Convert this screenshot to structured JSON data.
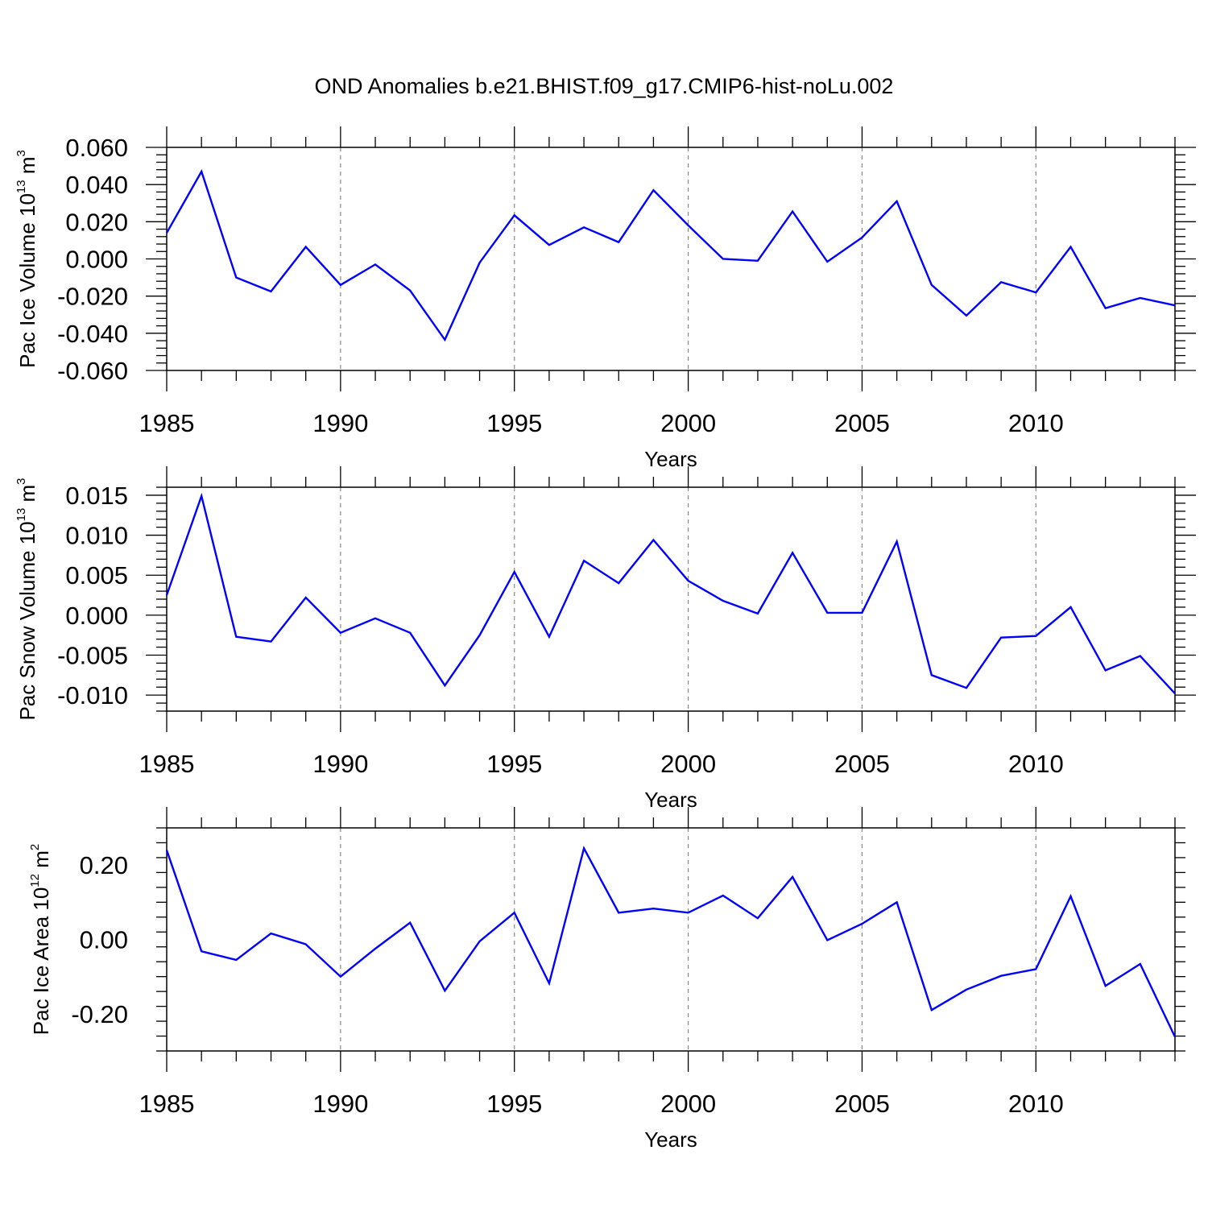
{
  "title": "OND Anomalies b.e21.BHIST.f09_g17.CMIP6-hist-noLu.002",
  "colors": {
    "line": "#0000ff",
    "axis": "#000000",
    "grid": "#888888"
  },
  "chart_data": [
    {
      "type": "line",
      "xlabel": "Years",
      "ylabel_text": "Pac Ice Volume 10",
      "ylabel_exp": "13",
      "ylabel_unit": " m",
      "ylabel_unit_exp": "3",
      "xlim": [
        1985,
        2014
      ],
      "ylim": [
        -0.06,
        0.06
      ],
      "yticks": [
        -0.06,
        -0.04,
        -0.02,
        0.0,
        0.02,
        0.04,
        0.06
      ],
      "ytick_labels": [
        "-0.060",
        "-0.040",
        "-0.020",
        "0.000",
        "0.020",
        "0.040",
        "0.060"
      ],
      "xticks": [
        1985,
        1990,
        1995,
        2000,
        2005,
        2010
      ],
      "xtick_labels": [
        "1985",
        "1990",
        "1995",
        "2000",
        "2005",
        "2010"
      ],
      "grid_x": [
        1990,
        1995,
        2000,
        2005,
        2010
      ],
      "x": [
        1985,
        1986,
        1987,
        1988,
        1989,
        1990,
        1991,
        1992,
        1993,
        1994,
        1995,
        1996,
        1997,
        1998,
        1999,
        2000,
        2001,
        2002,
        2003,
        2004,
        2005,
        2006,
        2007,
        2008,
        2009,
        2010,
        2011,
        2012,
        2013,
        2014
      ],
      "series": [
        {
          "values": [
            0.014,
            0.047,
            -0.01,
            -0.0175,
            0.0065,
            -0.014,
            -0.003,
            -0.017,
            -0.0435,
            -0.002,
            0.0235,
            0.0075,
            0.017,
            0.009,
            0.037,
            0.018,
            0.0,
            -0.001,
            0.0255,
            -0.0015,
            0.0115,
            0.031,
            -0.014,
            -0.0305,
            -0.0125,
            -0.018,
            0.0065,
            -0.0265,
            -0.021,
            -0.025
          ]
        }
      ]
    },
    {
      "type": "line",
      "xlabel": "Years",
      "ylabel_text": "Pac Snow Volume 10",
      "ylabel_exp": "13",
      "ylabel_unit": " m",
      "ylabel_unit_exp": "3",
      "xlim": [
        1985,
        2014
      ],
      "ylim": [
        -0.012,
        0.016
      ],
      "yticks": [
        -0.01,
        -0.005,
        0.0,
        0.005,
        0.01,
        0.015
      ],
      "ytick_labels": [
        "-0.010",
        "-0.005",
        "0.000",
        "0.005",
        "0.010",
        "0.015"
      ],
      "xticks": [
        1985,
        1990,
        1995,
        2000,
        2005,
        2010
      ],
      "xtick_labels": [
        "1985",
        "1990",
        "1995",
        "2000",
        "2005",
        "2010"
      ],
      "grid_x": [
        1990,
        1995,
        2000,
        2005,
        2010
      ],
      "x": [
        1985,
        1986,
        1987,
        1988,
        1989,
        1990,
        1991,
        1992,
        1993,
        1994,
        1995,
        1996,
        1997,
        1998,
        1999,
        2000,
        2001,
        2002,
        2003,
        2004,
        2005,
        2006,
        2007,
        2008,
        2009,
        2010,
        2011,
        2012,
        2013,
        2014
      ],
      "series": [
        {
          "values": [
            0.0025,
            0.0149,
            -0.0027,
            -0.0033,
            0.0022,
            -0.0022,
            -0.0004,
            -0.0022,
            -0.0088,
            -0.0025,
            0.0054,
            -0.0027,
            0.0068,
            0.004,
            0.0094,
            0.0043,
            0.0018,
            0.0002,
            0.0078,
            0.0003,
            0.0003,
            0.0092,
            -0.0075,
            -0.0091,
            -0.0028,
            -0.0026,
            0.001,
            -0.0069,
            -0.0051,
            -0.0098
          ]
        }
      ]
    },
    {
      "type": "line",
      "xlabel": "Years",
      "ylabel_text": "Pac Ice Area 10",
      "ylabel_exp": "12",
      "ylabel_unit": " m",
      "ylabel_unit_exp": "2",
      "xlim": [
        1985,
        2014
      ],
      "ylim": [
        -0.3,
        0.3
      ],
      "yticks": [
        -0.2,
        0.0,
        0.2
      ],
      "ytick_labels": [
        "-0.20",
        "0.00",
        "0.20"
      ],
      "xticks": [
        1985,
        1990,
        1995,
        2000,
        2005,
        2010
      ],
      "xtick_labels": [
        "1985",
        "1990",
        "1995",
        "2000",
        "2005",
        "2010"
      ],
      "grid_x": [
        1990,
        1995,
        2000,
        2005,
        2010
      ],
      "x": [
        1985,
        1986,
        1987,
        1988,
        1989,
        1990,
        1991,
        1992,
        1993,
        1994,
        1995,
        1996,
        1997,
        1998,
        1999,
        2000,
        2001,
        2002,
        2003,
        2004,
        2005,
        2006,
        2007,
        2008,
        2009,
        2010,
        2011,
        2012,
        2013,
        2014
      ],
      "series": [
        {
          "values": [
            0.24,
            -0.032,
            -0.055,
            0.016,
            -0.013,
            -0.1,
            -0.025,
            0.045,
            -0.138,
            -0.005,
            0.072,
            -0.118,
            0.245,
            0.072,
            0.083,
            0.072,
            0.118,
            0.057,
            0.168,
            -0.002,
            0.042,
            0.1,
            -0.19,
            -0.135,
            -0.098,
            -0.08,
            0.116,
            -0.125,
            -0.066,
            -0.262
          ]
        }
      ]
    }
  ]
}
